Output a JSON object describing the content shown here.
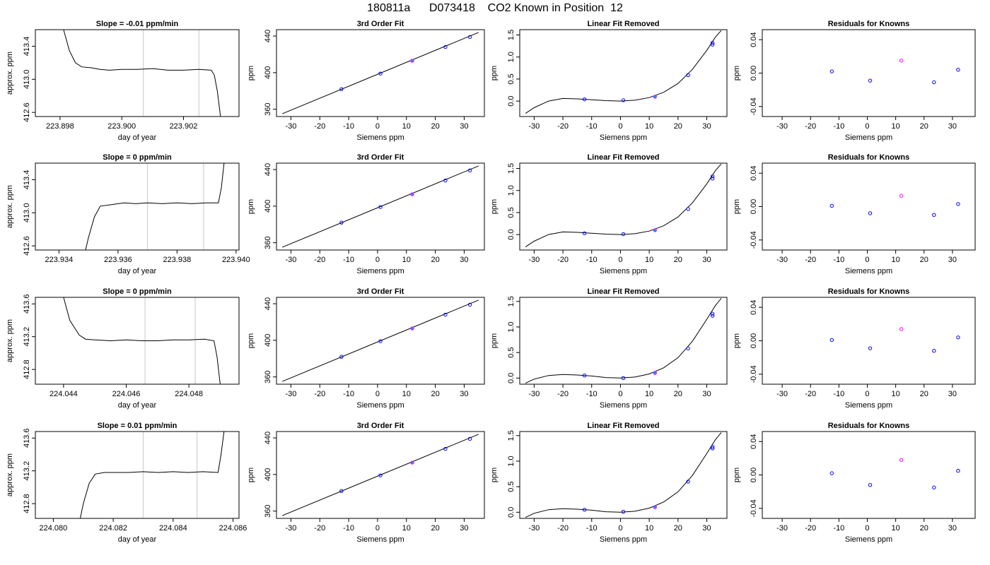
{
  "page": {
    "title": "180811a      D073418    CO2 Known in Position  12"
  },
  "chart_data": [
    {
      "type": "line",
      "row": 1,
      "col": 1,
      "title": "Slope =  -0.01  ppm/min",
      "xlabel": "day of year",
      "ylabel": "approx. ppm",
      "xlim": [
        223.8972,
        223.9038
      ],
      "ylim": [
        412.55,
        413.6
      ],
      "xticks": [
        223.898,
        223.9,
        223.902
      ],
      "xtick_labels": [
        "223.898",
        "223.900",
        "223.902"
      ],
      "yticks": [
        412.6,
        413.0,
        413.4
      ],
      "ytick_labels": [
        "412.6",
        "413.0",
        "413.4"
      ],
      "vlines": [
        223.9007,
        223.9025
      ],
      "x": [
        223.8981,
        223.8983,
        223.8985,
        223.8987,
        223.899,
        223.8993,
        223.8996,
        223.9,
        223.9005,
        223.901,
        223.9015,
        223.902,
        223.9025,
        223.9029,
        223.903,
        223.9031,
        223.9032
      ],
      "y": [
        413.62,
        413.35,
        413.2,
        413.15,
        413.14,
        413.12,
        413.11,
        413.12,
        413.12,
        413.13,
        413.11,
        413.11,
        413.12,
        413.11,
        413.05,
        412.85,
        412.55
      ]
    },
    {
      "type": "scatter",
      "row": 1,
      "col": 2,
      "title": "3rd Order Fit",
      "xlabel": "Siemens ppm",
      "ylabel": "ppm",
      "xlim": [
        -35,
        37
      ],
      "ylim": [
        352,
        447
      ],
      "xticks": [
        -30,
        -20,
        -10,
        0,
        10,
        20,
        30
      ],
      "xtick_labels": [
        "-30",
        "-20",
        "-10",
        "0",
        "10",
        "20",
        "30"
      ],
      "yticks": [
        360,
        400,
        440
      ],
      "ytick_labels": [
        "360",
        "400",
        "440"
      ],
      "fit_x": [
        -33,
        35
      ],
      "fit_y": [
        355,
        444
      ],
      "x": [
        -12.5,
        1.0,
        12.0,
        23.5,
        32.0
      ],
      "y": [
        382,
        399,
        413,
        428,
        439
      ]
    },
    {
      "type": "scatter",
      "row": 1,
      "col": 3,
      "title": "Linear Fit Removed",
      "xlabel": "Siemens ppm",
      "ylabel": "ppm",
      "xlim": [
        -35,
        37
      ],
      "ylim": [
        -0.35,
        1.62
      ],
      "xticks": [
        -30,
        -20,
        -10,
        0,
        10,
        20,
        30
      ],
      "xtick_labels": [
        "-30",
        "-20",
        "-10",
        "0",
        "10",
        "20",
        "30"
      ],
      "yticks": [
        0.0,
        0.5,
        1.0,
        1.5
      ],
      "ytick_labels": [
        "0.0",
        "0.5",
        "1.0",
        "1.5"
      ],
      "fit_x": [
        -33,
        -30,
        -25,
        -20,
        -15,
        -10,
        -5,
        0,
        5,
        10,
        15,
        20,
        25,
        30,
        33,
        35
      ],
      "fit_y": [
        -0.28,
        -0.15,
        0.0,
        0.06,
        0.05,
        0.03,
        0.01,
        0.0,
        0.02,
        0.08,
        0.2,
        0.4,
        0.72,
        1.15,
        1.45,
        1.6
      ],
      "x": [
        -12.5,
        1.0,
        12.0,
        23.5,
        32.0,
        32.0
      ],
      "y": [
        0.04,
        0.02,
        0.1,
        0.59,
        1.28,
        1.32
      ]
    },
    {
      "type": "scatter",
      "row": 1,
      "col": 4,
      "title": "Residuals for Knowns",
      "xlabel": "Siemens ppm",
      "ylabel": "ppm",
      "xlim": [
        -37,
        38
      ],
      "ylim": [
        -0.052,
        0.052
      ],
      "xticks": [
        -30,
        -20,
        -10,
        0,
        10,
        20,
        30
      ],
      "xtick_labels": [
        "-30",
        "-20",
        "-10",
        "0",
        "10",
        "20",
        "30"
      ],
      "yticks": [
        -0.04,
        0.0,
        0.04
      ],
      "ytick_labels": [
        "-0.04",
        "0.00",
        "0.04"
      ],
      "x": [
        -12.5,
        1.0,
        12.0,
        23.5,
        32.0
      ],
      "y": [
        0.002,
        -0.009,
        0.015,
        -0.011,
        0.004
      ]
    },
    {
      "type": "line",
      "row": 2,
      "col": 1,
      "title": "Slope =  0  ppm/min",
      "xlabel": "day of year",
      "ylabel": "approx. ppm",
      "xlim": [
        223.9332,
        223.9401
      ],
      "ylim": [
        412.55,
        413.6
      ],
      "xticks": [
        223.934,
        223.936,
        223.938,
        223.94
      ],
      "xtick_labels": [
        "223.934",
        "223.936",
        "223.938",
        "223.940"
      ],
      "yticks": [
        412.6,
        413.0,
        413.4
      ],
      "ytick_labels": [
        "412.6",
        "413.0",
        "413.4"
      ],
      "vlines": [
        223.937,
        223.9389
      ],
      "x": [
        223.9349,
        223.935,
        223.9352,
        223.9354,
        223.9358,
        223.9362,
        223.9366,
        223.937,
        223.9375,
        223.938,
        223.9385,
        223.939,
        223.9394,
        223.9395,
        223.9396
      ],
      "y": [
        412.55,
        412.7,
        412.95,
        413.08,
        413.1,
        413.12,
        413.11,
        413.12,
        413.11,
        413.12,
        413.11,
        413.12,
        413.12,
        413.3,
        413.62
      ]
    },
    {
      "type": "scatter",
      "row": 2,
      "col": 2,
      "title": "3rd Order Fit",
      "xlabel": "Siemens ppm",
      "ylabel": "ppm",
      "xlim": [
        -35,
        37
      ],
      "ylim": [
        352,
        447
      ],
      "xticks": [
        -30,
        -20,
        -10,
        0,
        10,
        20,
        30
      ],
      "xtick_labels": [
        "-30",
        "-20",
        "-10",
        "0",
        "10",
        "20",
        "30"
      ],
      "yticks": [
        360,
        400,
        440
      ],
      "ytick_labels": [
        "360",
        "400",
        "440"
      ],
      "fit_x": [
        -33,
        35
      ],
      "fit_y": [
        355,
        444
      ],
      "x": [
        -12.5,
        1.0,
        12.0,
        23.5,
        32.0
      ],
      "y": [
        382,
        399,
        413,
        428,
        439
      ]
    },
    {
      "type": "scatter",
      "row": 2,
      "col": 3,
      "title": "Linear Fit Removed",
      "xlabel": "Siemens ppm",
      "ylabel": "ppm",
      "xlim": [
        -35,
        37
      ],
      "ylim": [
        -0.35,
        1.62
      ],
      "xticks": [
        -30,
        -20,
        -10,
        0,
        10,
        20,
        30
      ],
      "xtick_labels": [
        "-30",
        "-20",
        "-10",
        "0",
        "10",
        "20",
        "30"
      ],
      "yticks": [
        0.0,
        0.5,
        1.0,
        1.5
      ],
      "ytick_labels": [
        "0.0",
        "0.5",
        "1.0",
        "1.5"
      ],
      "fit_x": [
        -33,
        -30,
        -25,
        -20,
        -15,
        -10,
        -5,
        0,
        5,
        10,
        15,
        20,
        25,
        30,
        33,
        35
      ],
      "fit_y": [
        -0.28,
        -0.15,
        0.0,
        0.06,
        0.05,
        0.03,
        0.01,
        0.0,
        0.02,
        0.08,
        0.2,
        0.4,
        0.72,
        1.15,
        1.45,
        1.6
      ],
      "x": [
        -12.5,
        1.0,
        12.0,
        23.5,
        32.0,
        32.0
      ],
      "y": [
        0.03,
        0.01,
        0.1,
        0.58,
        1.27,
        1.32
      ]
    },
    {
      "type": "scatter",
      "row": 2,
      "col": 4,
      "title": "Residuals for Knowns",
      "xlabel": "Siemens ppm",
      "ylabel": "ppm",
      "xlim": [
        -37,
        38
      ],
      "ylim": [
        -0.052,
        0.052
      ],
      "xticks": [
        -30,
        -20,
        -10,
        0,
        10,
        20,
        30
      ],
      "xtick_labels": [
        "-30",
        "-20",
        "-10",
        "0",
        "10",
        "20",
        "30"
      ],
      "yticks": [
        -0.04,
        0.0,
        0.04
      ],
      "ytick_labels": [
        "-0.04",
        "0.00",
        "0.04"
      ],
      "x": [
        -12.5,
        1.0,
        12.0,
        23.5,
        32.0
      ],
      "y": [
        0.001,
        -0.008,
        0.013,
        -0.01,
        0.003
      ]
    },
    {
      "type": "line",
      "row": 3,
      "col": 1,
      "title": "Slope =  0  ppm/min",
      "xlabel": "day of year",
      "ylabel": "approx. ppm",
      "xlim": [
        224.0431,
        224.0496
      ],
      "ylim": [
        412.62,
        413.68
      ],
      "xticks": [
        224.044,
        224.046,
        224.048
      ],
      "xtick_labels": [
        "224.044",
        "224.046",
        "224.048"
      ],
      "yticks": [
        412.8,
        413.2,
        413.6
      ],
      "ytick_labels": [
        "412.8",
        "413.2",
        "413.6"
      ],
      "vlines": [
        224.0466,
        224.0482
      ],
      "x": [
        224.044,
        224.0442,
        224.0445,
        224.0447,
        224.045,
        224.0455,
        224.046,
        224.0465,
        224.047,
        224.0475,
        224.048,
        224.0485,
        224.0488,
        224.0489,
        224.049
      ],
      "y": [
        413.68,
        413.4,
        413.22,
        413.17,
        413.16,
        413.15,
        413.16,
        413.15,
        413.15,
        413.16,
        413.16,
        413.17,
        413.15,
        412.95,
        412.62
      ]
    },
    {
      "type": "scatter",
      "row": 3,
      "col": 2,
      "title": "3rd Order Fit",
      "xlabel": "Siemens ppm",
      "ylabel": "ppm",
      "xlim": [
        -35,
        37
      ],
      "ylim": [
        352,
        447
      ],
      "xticks": [
        -30,
        -20,
        -10,
        0,
        10,
        20,
        30
      ],
      "xtick_labels": [
        "-30",
        "-20",
        "-10",
        "0",
        "10",
        "20",
        "30"
      ],
      "yticks": [
        360,
        400,
        440
      ],
      "ytick_labels": [
        "360",
        "400",
        "440"
      ],
      "fit_x": [
        -33,
        35
      ],
      "fit_y": [
        355,
        444
      ],
      "x": [
        -12.5,
        1.0,
        12.0,
        23.5,
        32.0
      ],
      "y": [
        382,
        399,
        413,
        428,
        439
      ]
    },
    {
      "type": "scatter",
      "row": 3,
      "col": 3,
      "title": "Linear Fit Removed",
      "xlabel": "Siemens ppm",
      "ylabel": "ppm",
      "xlim": [
        -35,
        37
      ],
      "ylim": [
        -0.12,
        1.58
      ],
      "xticks": [
        -30,
        -20,
        -10,
        0,
        10,
        20,
        30
      ],
      "xtick_labels": [
        "-30",
        "-20",
        "-10",
        "0",
        "10",
        "20",
        "30"
      ],
      "yticks": [
        0.0,
        0.5,
        1.0,
        1.5
      ],
      "ytick_labels": [
        "0.0",
        "0.5",
        "1.0",
        "1.5"
      ],
      "fit_x": [
        -33,
        -30,
        -25,
        -20,
        -15,
        -10,
        -5,
        0,
        5,
        10,
        15,
        20,
        25,
        30,
        33,
        35
      ],
      "fit_y": [
        -0.1,
        -0.02,
        0.05,
        0.07,
        0.06,
        0.04,
        0.01,
        0.0,
        0.02,
        0.08,
        0.2,
        0.4,
        0.72,
        1.15,
        1.42,
        1.56
      ],
      "x": [
        -12.5,
        1.0,
        12.0,
        23.5,
        32.0,
        32.0
      ],
      "y": [
        0.05,
        0.0,
        0.1,
        0.58,
        1.22,
        1.26
      ]
    },
    {
      "type": "scatter",
      "row": 3,
      "col": 4,
      "title": "Residuals for Knowns",
      "xlabel": "Siemens ppm",
      "ylabel": "ppm",
      "xlim": [
        -37,
        38
      ],
      "ylim": [
        -0.052,
        0.052
      ],
      "xticks": [
        -30,
        -20,
        -10,
        0,
        10,
        20,
        30
      ],
      "xtick_labels": [
        "-30",
        "-20",
        "-10",
        "0",
        "10",
        "20",
        "30"
      ],
      "yticks": [
        -0.04,
        0.0,
        0.04
      ],
      "ytick_labels": [
        "-0.04",
        "0.00",
        "0.04"
      ],
      "x": [
        -12.5,
        1.0,
        12.0,
        23.5,
        32.0
      ],
      "y": [
        0.001,
        -0.009,
        0.014,
        -0.012,
        0.004
      ]
    },
    {
      "type": "line",
      "row": 4,
      "col": 1,
      "title": "Slope =  0.01  ppm/min",
      "xlabel": "day of year",
      "ylabel": "approx. ppm",
      "xlim": [
        224.0794,
        224.0862
      ],
      "ylim": [
        412.62,
        413.68
      ],
      "xticks": [
        224.08,
        224.082,
        224.084,
        224.086
      ],
      "xtick_labels": [
        "224.080",
        "224.082",
        "224.084",
        "224.086"
      ],
      "yticks": [
        412.8,
        413.2,
        413.6
      ],
      "ytick_labels": [
        "412.8",
        "413.2",
        "413.6"
      ],
      "vlines": [
        224.083,
        224.0848
      ],
      "x": [
        224.0809,
        224.081,
        224.0812,
        224.0814,
        224.0817,
        224.082,
        224.0825,
        224.083,
        224.0835,
        224.084,
        224.0845,
        224.085,
        224.0855,
        224.0856,
        224.0857
      ],
      "y": [
        412.62,
        412.8,
        413.05,
        413.16,
        413.18,
        413.18,
        413.18,
        413.19,
        413.18,
        413.19,
        413.18,
        413.19,
        413.18,
        413.4,
        413.68
      ]
    },
    {
      "type": "scatter",
      "row": 4,
      "col": 2,
      "title": "3rd Order Fit",
      "xlabel": "Siemens ppm",
      "ylabel": "ppm",
      "xlim": [
        -35,
        37
      ],
      "ylim": [
        352,
        447
      ],
      "xticks": [
        -30,
        -20,
        -10,
        0,
        10,
        20,
        30
      ],
      "xtick_labels": [
        "-30",
        "-20",
        "-10",
        "0",
        "10",
        "20",
        "30"
      ],
      "yticks": [
        360,
        400,
        440
      ],
      "ytick_labels": [
        "360",
        "400",
        "440"
      ],
      "fit_x": [
        -33,
        35
      ],
      "fit_y": [
        355,
        444
      ],
      "x": [
        -12.5,
        1.0,
        12.0,
        23.5,
        32.0
      ],
      "y": [
        382,
        399,
        413,
        428,
        439
      ]
    },
    {
      "type": "scatter",
      "row": 4,
      "col": 3,
      "title": "Linear Fit Removed",
      "xlabel": "Siemens ppm",
      "ylabel": "ppm",
      "xlim": [
        -35,
        37
      ],
      "ylim": [
        -0.12,
        1.58
      ],
      "xticks": [
        -30,
        -20,
        -10,
        0,
        10,
        20,
        30
      ],
      "xtick_labels": [
        "-30",
        "-20",
        "-10",
        "0",
        "10",
        "20",
        "30"
      ],
      "yticks": [
        0.0,
        0.5,
        1.0,
        1.5
      ],
      "ytick_labels": [
        "0.0",
        "0.5",
        "1.0",
        "1.5"
      ],
      "fit_x": [
        -33,
        -30,
        -25,
        -20,
        -15,
        -10,
        -5,
        0,
        5,
        10,
        15,
        20,
        25,
        30,
        33,
        35
      ],
      "fit_y": [
        -0.1,
        -0.02,
        0.05,
        0.07,
        0.06,
        0.04,
        0.01,
        0.0,
        0.02,
        0.08,
        0.2,
        0.4,
        0.72,
        1.15,
        1.42,
        1.56
      ],
      "x": [
        -12.5,
        1.0,
        12.0,
        23.5,
        32.0,
        32.0
      ],
      "y": [
        0.05,
        0.01,
        0.1,
        0.6,
        1.25,
        1.28
      ]
    },
    {
      "type": "scatter",
      "row": 4,
      "col": 4,
      "title": "Residuals for Knowns",
      "xlabel": "Siemens ppm",
      "ylabel": "ppm",
      "xlim": [
        -37,
        38
      ],
      "ylim": [
        -0.052,
        0.052
      ],
      "xticks": [
        -30,
        -20,
        -10,
        0,
        10,
        20,
        30
      ],
      "xtick_labels": [
        "-30",
        "-20",
        "-10",
        "0",
        "10",
        "20",
        "30"
      ],
      "yticks": [
        -0.04,
        0.0,
        0.04
      ],
      "ytick_labels": [
        "-0.04",
        "0.00",
        "0.04"
      ],
      "x": [
        -12.5,
        1.0,
        12.0,
        23.5,
        32.0
      ],
      "y": [
        0.002,
        -0.012,
        0.018,
        -0.015,
        0.005
      ]
    }
  ],
  "colors": {
    "line": "#000000",
    "axis": "#000000",
    "vline": "#c8c8c8",
    "point_stroke": "#0000ff",
    "point_stroke_alt": "#ff00ff",
    "point_fill": "#00a0ff"
  }
}
